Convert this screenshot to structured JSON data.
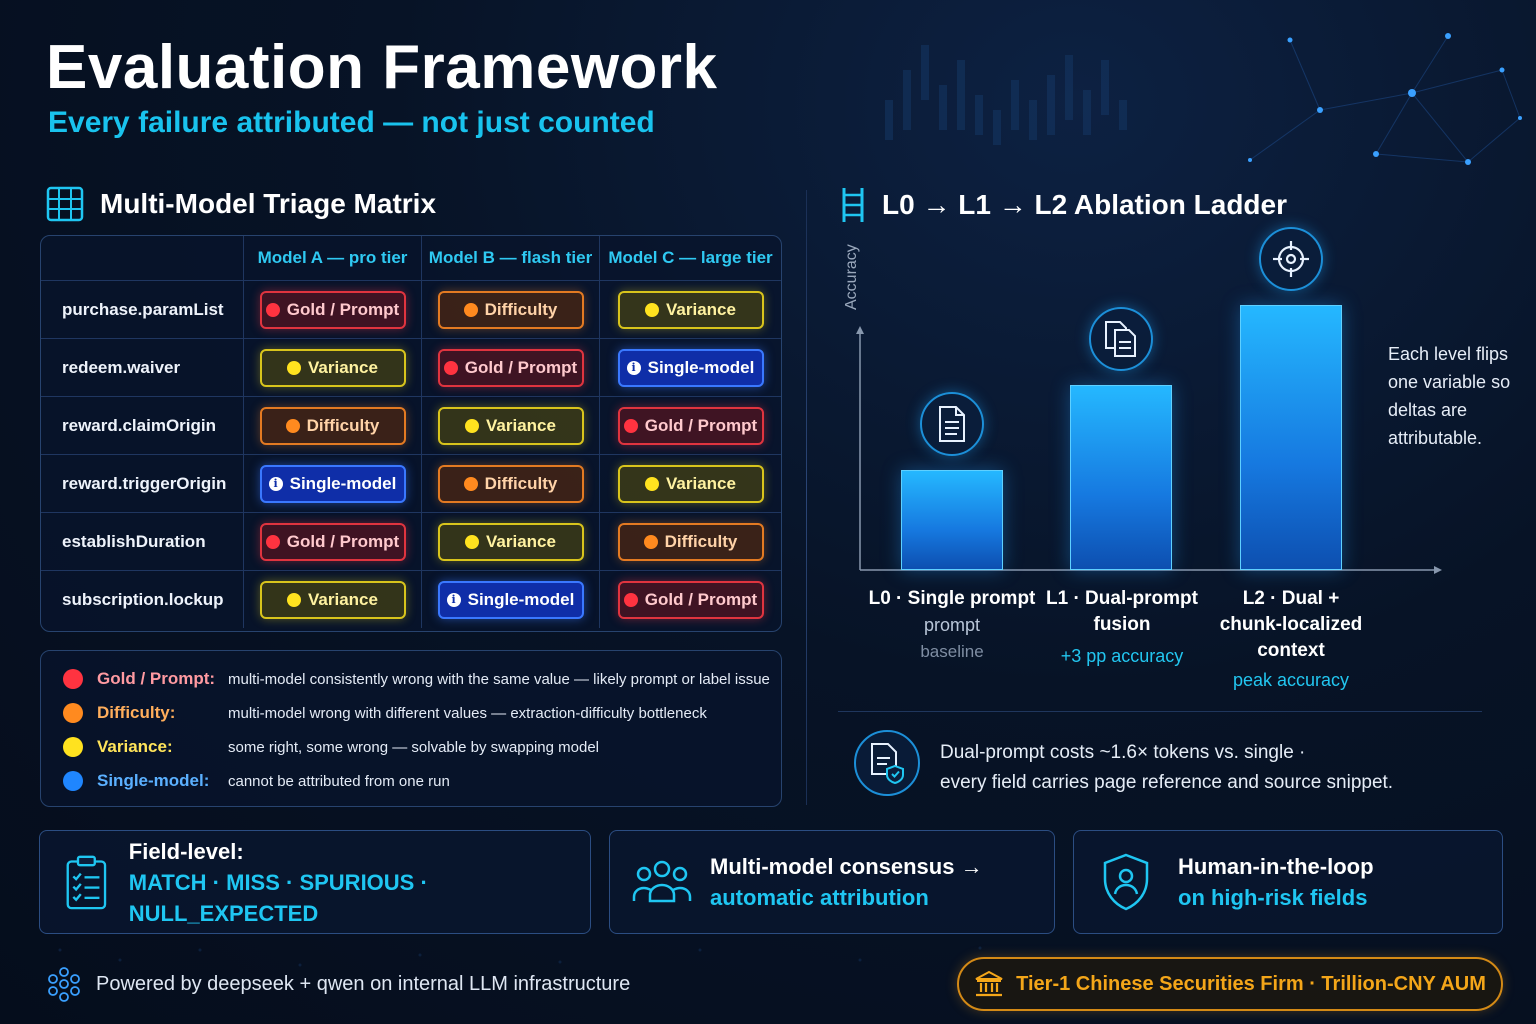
{
  "header": {
    "title": "Evaluation Framework",
    "subtitle": "Every failure attributed — not just counted"
  },
  "matrix": {
    "title": "Multi-Model Triage Matrix",
    "columns": [
      "Model A — pro tier",
      "Model B — flash tier",
      "Model C — large tier"
    ],
    "rows": [
      {
        "field": "purchase.paramList",
        "cells": [
          {
            "label": "Gold / Prompt",
            "kind": "gold"
          },
          {
            "label": "Difficulty",
            "kind": "diff"
          },
          {
            "label": "Variance",
            "kind": "var"
          }
        ]
      },
      {
        "field": "redeem.waiver",
        "cells": [
          {
            "label": "Variance",
            "kind": "var"
          },
          {
            "label": "Gold / Prompt",
            "kind": "gold"
          },
          {
            "label": "Single-model",
            "kind": "single"
          }
        ]
      },
      {
        "field": "reward.claimOrigin",
        "cells": [
          {
            "label": "Difficulty",
            "kind": "diff"
          },
          {
            "label": "Variance",
            "kind": "var"
          },
          {
            "label": "Gold / Prompt",
            "kind": "gold"
          }
        ]
      },
      {
        "field": "reward.triggerOrigin",
        "cells": [
          {
            "label": "Single-model",
            "kind": "single"
          },
          {
            "label": "Difficulty",
            "kind": "diff"
          },
          {
            "label": "Variance",
            "kind": "var"
          }
        ]
      },
      {
        "field": "establishDuration",
        "cells": [
          {
            "label": "Gold / Prompt",
            "kind": "gold"
          },
          {
            "label": "Variance",
            "kind": "var"
          },
          {
            "label": "Difficulty",
            "kind": "diff"
          }
        ]
      },
      {
        "field": "subscription.lockup",
        "cells": [
          {
            "label": "Variance",
            "kind": "var"
          },
          {
            "label": "Single-model",
            "kind": "single"
          },
          {
            "label": "Gold / Prompt",
            "kind": "gold"
          }
        ]
      }
    ]
  },
  "legend": [
    {
      "name": "Gold / Prompt:",
      "desc": "multi-model consistently wrong with the same value — likely prompt or label issue",
      "color": "#ff3340",
      "text_color": "#ff9aa1"
    },
    {
      "name": "Difficulty:",
      "desc": "multi-model wrong with different values — extraction-difficulty bottleneck",
      "color": "#ff8a1f",
      "text_color": "#ffae5c"
    },
    {
      "name": "Variance:",
      "desc": "some right, some wrong — solvable by swapping model",
      "color": "#ffe21f",
      "text_color": "#ffe45a"
    },
    {
      "name": "Single-model:",
      "desc": "cannot be attributed from one run",
      "color": "#1f86ff",
      "text_color": "#5bb0ff"
    }
  ],
  "ladder": {
    "title": "L0 → L1 → L2 Ablation Ladder",
    "side_note": "Each level flips one variable so deltas are attributable.",
    "cost_note_line1": "Dual-prompt costs ~1.6× tokens vs. single  ·",
    "cost_note_line2": "every field carries page reference and source snippet."
  },
  "chart_data": {
    "type": "bar",
    "ylabel": "Accuracy",
    "categories": [
      "L0 · Single prompt",
      "L1 · Dual-prompt fusion",
      "L2 · Dual + chunk-localized context"
    ],
    "category_display": [
      {
        "line1": "L0 · Single prompt",
        "line2": "prompt",
        "note": "baseline",
        "icon": "document-icon"
      },
      {
        "line1": "L1 · Dual-prompt",
        "line2": "fusion",
        "note": "+3 pp accuracy",
        "icon": "documents-icon"
      },
      {
        "line1": "L2 · Dual +",
        "line2": "chunk-localized",
        "line3": "context",
        "note": "peak accuracy",
        "icon": "target-icon"
      }
    ],
    "values": [
      100,
      185,
      265
    ],
    "ylim": [
      0,
      300
    ],
    "grid": false,
    "legend": "none"
  },
  "cards": [
    {
      "line1": "Field-level:",
      "line2": "MATCH · MISS · SPURIOUS · NULL_EXPECTED",
      "icon": "clipboard-checklist-icon"
    },
    {
      "line1": "Multi-model consensus →",
      "line2": "automatic attribution",
      "icon": "people-group-icon"
    },
    {
      "line1": "Human-in-the-loop",
      "line2": "on high-risk fields",
      "icon": "shield-user-icon"
    }
  ],
  "footer": {
    "powered": "Powered by deepseek + qwen on internal LLM infrastructure",
    "firm": "Tier-1 Chinese Securities Firm  ·  Trillion-CNY AUM"
  },
  "colors": {
    "accent": "#19c3ee",
    "gold": "#ff3340",
    "difficulty": "#ff8a1f",
    "variance": "#ffe21f",
    "single": "#1f86ff",
    "firm": "#f4a619"
  }
}
